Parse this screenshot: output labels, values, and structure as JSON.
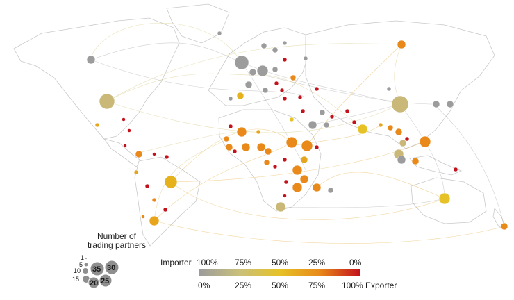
{
  "legend": {
    "size_title_line1": "Number of",
    "size_title_line2": "trading partners",
    "size_values": [
      "1",
      "5",
      "10",
      "15",
      "20",
      "25",
      "30",
      "35"
    ],
    "color_scale": {
      "importer_label": "Importer",
      "exporter_label": "Exporter",
      "top_ticks": [
        "100%",
        "75%",
        "50%",
        "25%",
        "0%"
      ],
      "bottom_ticks": [
        "0%",
        "25%",
        "50%",
        "75%",
        "100%"
      ],
      "colors": [
        "#9c9c9c",
        "#c9c07a",
        "#e6c227",
        "#e8891a",
        "#c4121c"
      ]
    }
  }
}
